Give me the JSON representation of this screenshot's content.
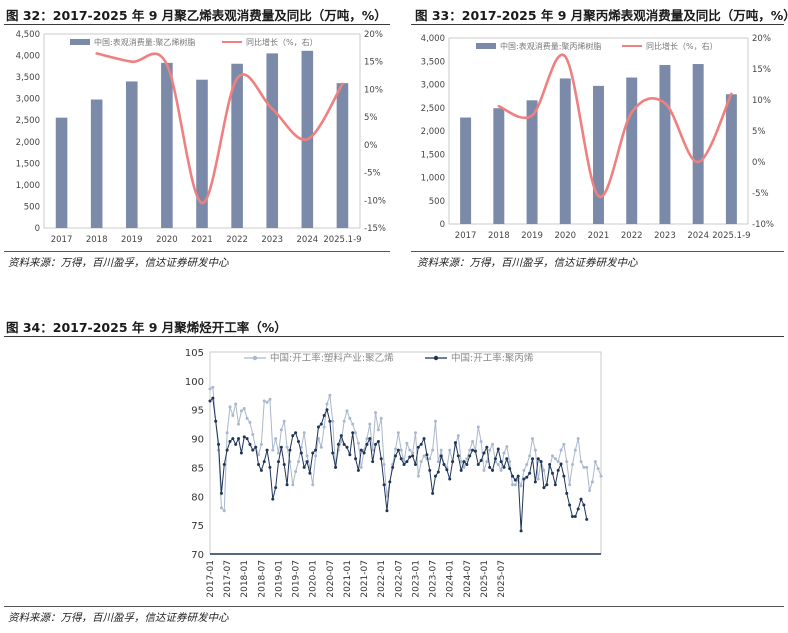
{
  "figures": [
    {
      "title": "图 32：2017-2025 年 9 月聚乙烯表观消费量及同比（万吨，%）",
      "source": "资料来源：万得，百川盈孚，信达证券研发中心"
    },
    {
      "title": "图 33：2017-2025 年 9 月聚丙烯表观消费量及同比（万吨，%）",
      "source": "资料来源：万得，百川盈孚，信达证券研发中心"
    },
    {
      "title": "图 34：2017-2025 年 9 月聚烯烃开工率（%）",
      "source": "资料来源：万得，百川盈孚，信达证券研发中心"
    }
  ],
  "chart_data": [
    {
      "type": "bar",
      "categories": [
        "2017",
        "2018",
        "2019",
        "2020",
        "2021",
        "2022",
        "2023",
        "2024",
        "2025.1-9"
      ],
      "series": [
        {
          "name": "中国:表观消费量:聚乙烯树脂",
          "kind": "bar",
          "axis": "left",
          "color": "#7b8aa8",
          "values": [
            2560,
            2980,
            3400,
            3830,
            3440,
            3810,
            4050,
            4110,
            3360
          ]
        },
        {
          "name": "同比增长（%，右）",
          "kind": "line",
          "axis": "right",
          "color": "#f08080",
          "values": [
            null,
            16.5,
            15,
            14.5,
            -10.5,
            12,
            6.5,
            1,
            11
          ]
        }
      ],
      "ylim_left": [
        0,
        4500
      ],
      "yticks_left": [
        "0",
        "500",
        "1,000",
        "1,500",
        "2,000",
        "2,500",
        "3,000",
        "3,500",
        "4,000",
        "4,500"
      ],
      "ylim_right": [
        -15,
        20
      ],
      "yticks_right": [
        "-15%",
        "-10%",
        "-5%",
        "0%",
        "5%",
        "10%",
        "15%",
        "20%"
      ],
      "legend": "top"
    },
    {
      "type": "bar",
      "categories": [
        "2017",
        "2018",
        "2019",
        "2020",
        "2021",
        "2022",
        "2023",
        "2024",
        "2025.1-9"
      ],
      "series": [
        {
          "name": "中国:表观消费量:聚丙烯树脂",
          "kind": "bar",
          "axis": "left",
          "color": "#7b8aa8",
          "values": [
            2290,
            2490,
            2660,
            3130,
            2970,
            3150,
            3420,
            3440,
            2790
          ]
        },
        {
          "name": "同比增长（%，右）",
          "kind": "line",
          "axis": "right",
          "color": "#f08080",
          "values": [
            null,
            9,
            7.5,
            17,
            -5.5,
            8,
            9.5,
            0,
            11
          ]
        }
      ],
      "ylim_left": [
        0,
        4000
      ],
      "yticks_left": [
        "0",
        "500",
        "1,000",
        "1,500",
        "2,000",
        "2,500",
        "3,000",
        "3,500",
        "4,000"
      ],
      "ylim_right": [
        -10,
        20
      ],
      "yticks_right": [
        "-10%",
        "-5%",
        "0%",
        "5%",
        "10%",
        "15%",
        "20%"
      ],
      "legend": "top"
    },
    {
      "type": "line",
      "x_tick_labels": [
        "2017-01",
        "2017-07",
        "2018-01",
        "2018-07",
        "2019-01",
        "2019-07",
        "2020-01",
        "2020-07",
        "2021-01",
        "2021-07",
        "2022-01",
        "2022-07",
        "2023-01",
        "2023-07",
        "2024-01",
        "2024-07",
        "2025-01",
        "2025-07"
      ],
      "x_start": "2017-01",
      "ylim": [
        70,
        105
      ],
      "yticks": [
        "70",
        "75",
        "80",
        "85",
        "90",
        "95",
        "100",
        "105"
      ],
      "legend": "top",
      "series": [
        {
          "name": "中国:开工率:塑料产业:聚乙烯",
          "color": "#a9b8cc",
          "marker": "circle",
          "values": [
            98.6,
            98.9,
            93,
            88,
            78,
            77.5,
            91,
            95.5,
            94,
            96,
            92.5,
            94.8,
            95.2,
            93.5,
            92.8,
            90.7,
            88.5,
            87.2,
            89,
            96.5,
            96.3,
            96.8,
            88,
            90,
            87.5,
            91.5,
            93,
            88.5,
            86,
            82,
            84.3,
            86,
            88.5,
            91,
            87,
            85,
            82,
            87,
            90,
            88.5,
            92,
            96,
            97.5,
            93,
            85,
            88,
            89.5,
            93,
            94.8,
            93.5,
            92.5,
            91,
            89.2,
            85,
            88,
            90,
            92.5,
            88,
            94.5,
            91.5,
            93.5,
            85.5,
            80,
            82.5,
            85.5,
            88.2,
            91,
            88,
            86,
            89.2,
            88,
            87.5,
            91,
            83.5,
            86,
            87,
            86.5,
            86.5,
            88,
            93,
            86,
            88,
            85.5,
            85,
            88,
            86,
            89,
            90.5,
            86,
            85,
            86.5,
            88,
            89.5,
            88,
            92,
            89.5,
            84.5,
            86,
            88,
            89,
            86,
            85.5,
            84.5,
            87.5,
            88.6,
            86,
            82,
            82,
            83,
            81.8,
            84.5,
            85.5,
            87,
            90,
            88,
            83,
            86,
            84.5,
            82,
            85,
            87,
            86.5,
            86,
            88,
            89,
            86,
            82,
            85.5,
            88,
            90,
            86,
            85,
            85,
            81,
            82.5,
            86,
            84.8,
            83.5
          ]
        },
        {
          "name": "中国:开工率:聚丙烯",
          "color": "#1f3457",
          "marker": "circle",
          "values": [
            96.5,
            97,
            93,
            89,
            80.5,
            85.5,
            88,
            89.5,
            90,
            89,
            90,
            87.5,
            90.3,
            90,
            89,
            88,
            88.5,
            85.5,
            84.5,
            86,
            88,
            85,
            79.5,
            81.5,
            86,
            88.5,
            85.5,
            82,
            88,
            90.5,
            91,
            89.5,
            87.5,
            85,
            86,
            84,
            87.5,
            88,
            92,
            92.5,
            94,
            95,
            93,
            87.5,
            85,
            89,
            90.5,
            89,
            88.5,
            87.2,
            91,
            86.5,
            84.5,
            88,
            87.5,
            89,
            90,
            86,
            89,
            89.5,
            86.5,
            82,
            77.5,
            82.5,
            85,
            87,
            88,
            86.5,
            85.5,
            86,
            86.8,
            87,
            85.5,
            88.5,
            89,
            90,
            87.2,
            84.5,
            80.5,
            83.5,
            84.2,
            87,
            85.5,
            84.6,
            83,
            86,
            89.3,
            87,
            84.5,
            86,
            85.5,
            87,
            88,
            87.8,
            85.5,
            86.2,
            87.5,
            88.5,
            85,
            84.5,
            86.5,
            88.2,
            86,
            85,
            86.5,
            84.8,
            83.5,
            82.8,
            83.5,
            74,
            83,
            83.3,
            84,
            86.5,
            82.5,
            86.5,
            86,
            81.5,
            82,
            85.5,
            84,
            82,
            84.5,
            85.6,
            83.5,
            80.5,
            78.5,
            76.5,
            76.5,
            77.8,
            79.5,
            78.5,
            76
          ]
        }
      ]
    }
  ]
}
